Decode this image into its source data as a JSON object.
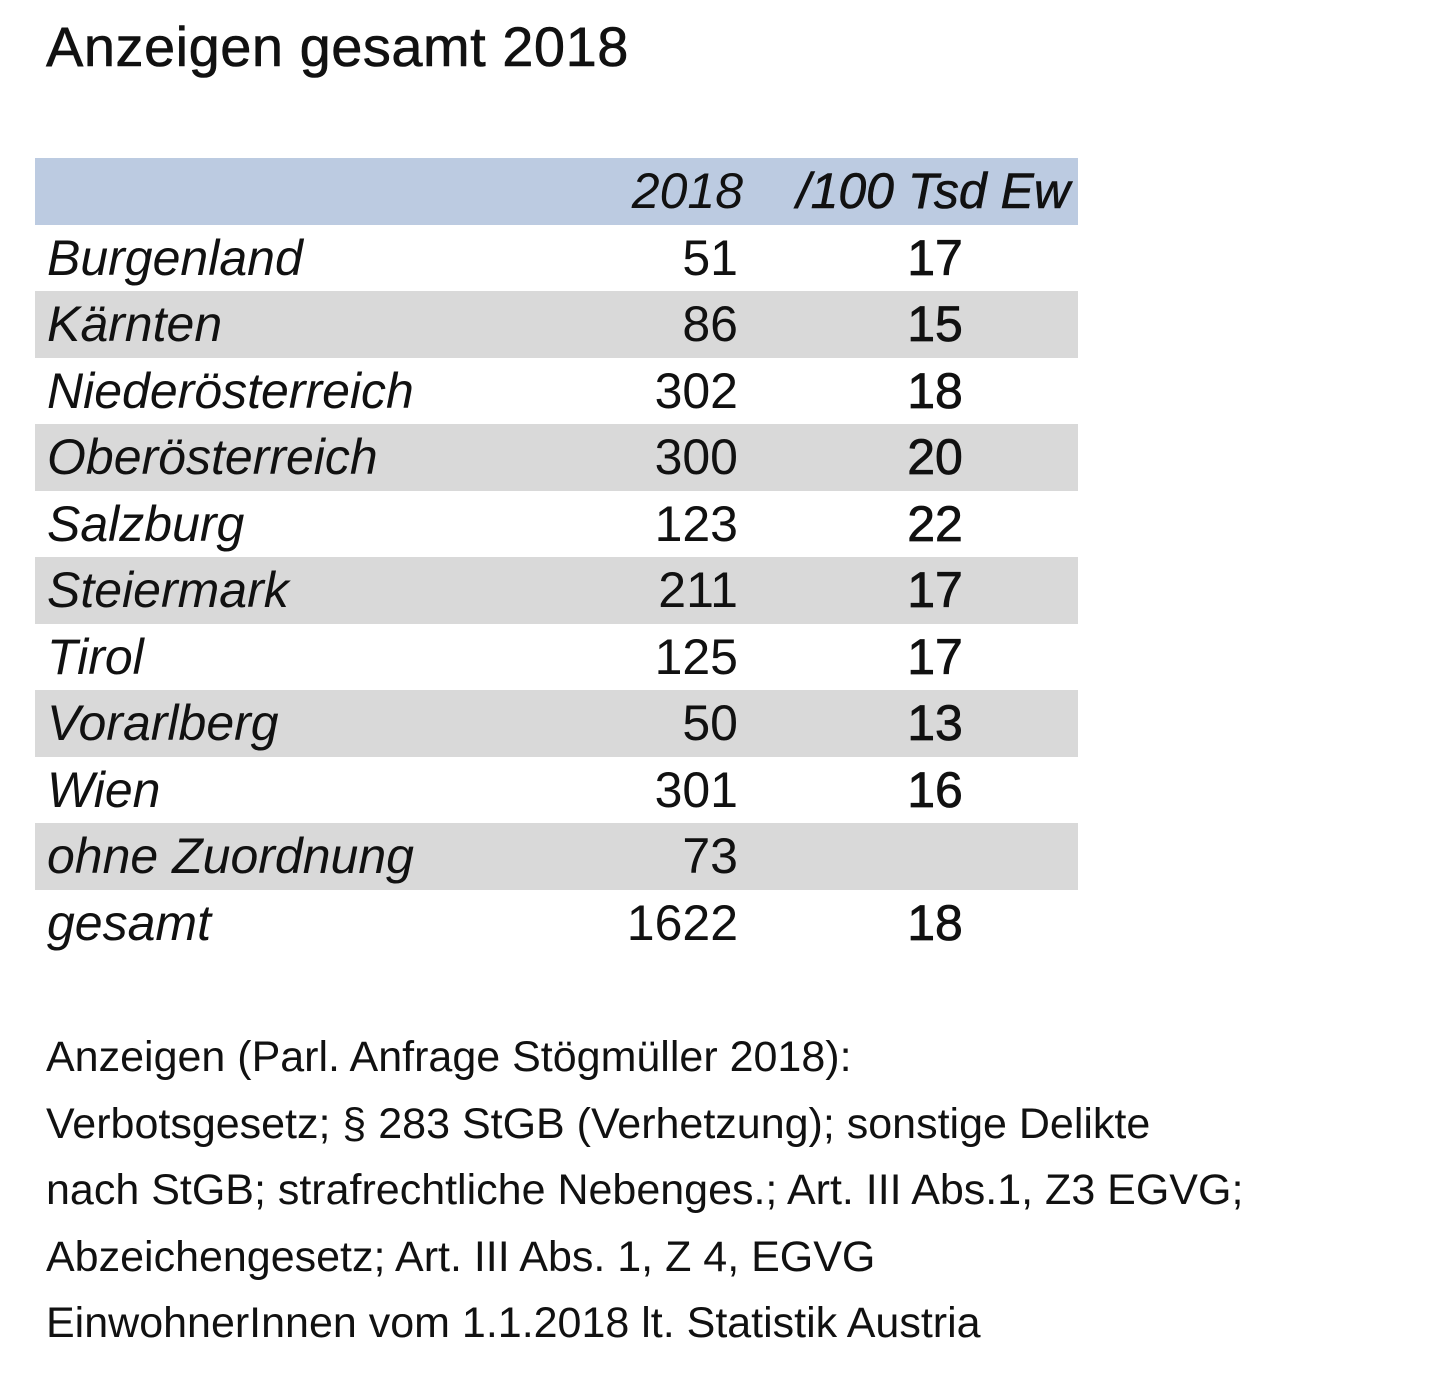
{
  "title": "Anzeigen gesamt 2018",
  "table": {
    "header": {
      "year": "2018",
      "rate": "/100 Tsd Ew"
    },
    "rows": [
      {
        "label": "Burgenland",
        "count": "51",
        "rate": "17"
      },
      {
        "label": "Kärnten",
        "count": "86",
        "rate": "15"
      },
      {
        "label": "Niederösterreich",
        "count": "302",
        "rate": "18"
      },
      {
        "label": "Oberösterreich",
        "count": "300",
        "rate": "20"
      },
      {
        "label": "Salzburg",
        "count": "123",
        "rate": "22"
      },
      {
        "label": "Steiermark",
        "count": "211",
        "rate": "17"
      },
      {
        "label": "Tirol",
        "count": "125",
        "rate": "17"
      },
      {
        "label": "Vorarlberg",
        "count": "50",
        "rate": "13"
      },
      {
        "label": "Wien",
        "count": "301",
        "rate": "16"
      },
      {
        "label": "ohne Zuordnung",
        "count": "73",
        "rate": ""
      },
      {
        "label": "gesamt",
        "count": "1622",
        "rate": "18"
      }
    ]
  },
  "notes": [
    "Anzeigen (Parl. Anfrage Stögmüller 2018):",
    "Verbotsgesetz; § 283 StGB (Verhetzung); sonstige Delikte",
    "nach StGB; strafrechtliche Nebenges.; Art. III Abs.1, Z3 EGVG;",
    "Abzeichengesetz; Art. III Abs. 1, Z 4, EGVG",
    "EinwohnerInnen vom 1.1.2018 lt. Statistik Austria"
  ],
  "colors": {
    "header_band": "#bccbe1",
    "shaded_row": "#d9d9d9",
    "text": "#111111"
  }
}
